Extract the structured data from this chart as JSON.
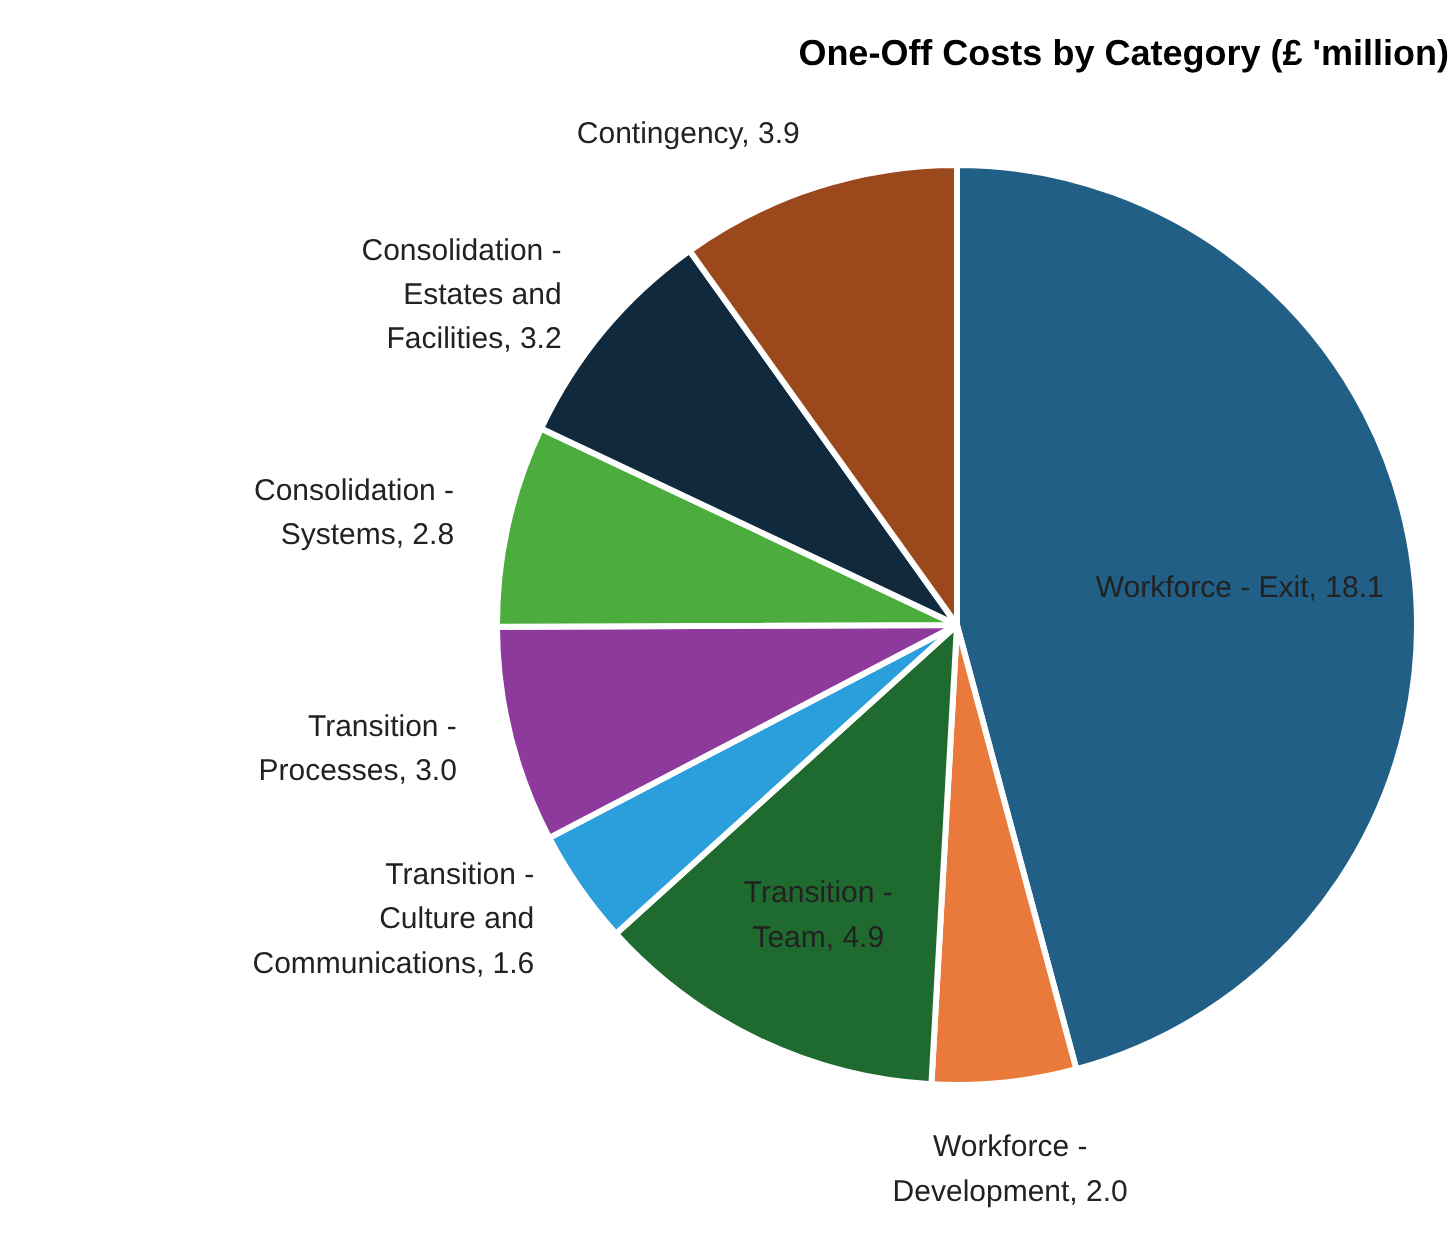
{
  "chart_data": {
    "type": "pie",
    "title": "One-Off Costs by Category (£ 'million)",
    "categories": [
      "Workforce - Exit",
      "Workforce - Development",
      "Transition - Team",
      "Transition - Culture and Communications",
      "Transition - Processes",
      "Consolidation - Systems",
      "Consolidation - Estates and Facilities",
      "Contingency"
    ],
    "values": [
      18.1,
      2.0,
      4.9,
      1.6,
      3.0,
      2.8,
      3.2,
      3.9
    ],
    "value_labels": [
      "18.1",
      "2.0",
      "4.9",
      "1.6",
      "3.0",
      "2.8",
      "3.2",
      "3.9"
    ],
    "colors": [
      "#215f86",
      "#ea7a3b",
      "#1f6b2f",
      "#2b9fdc",
      "#8d3a9c",
      "#4cad3e",
      "#10293d",
      "#9a481c"
    ]
  }
}
